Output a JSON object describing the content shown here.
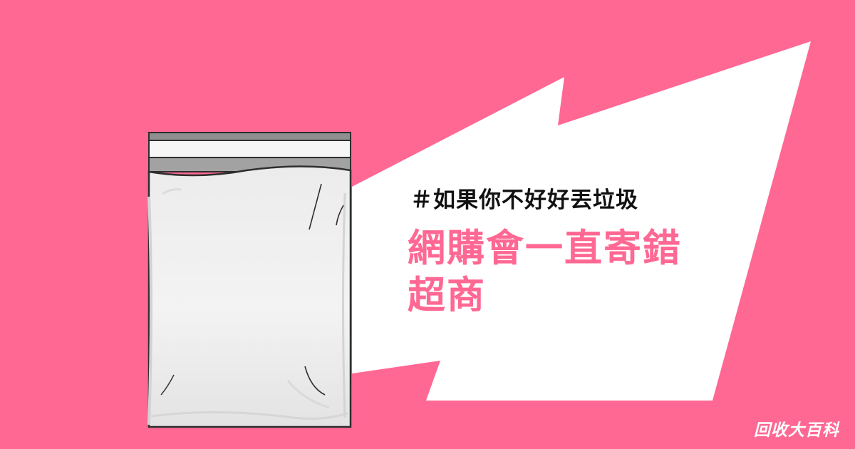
{
  "hashtag": "＃如果你不好好丟垃圾",
  "headline": {
    "line1": "網購會一直寄錯",
    "line2": "超商"
  },
  "brand": "回收大百科",
  "colors": {
    "background": "#ff6893",
    "headline": "#ff6893",
    "hashtag": "#111111",
    "burst": "#ffffff"
  },
  "icons": {
    "illustration": "zip-bag-illustration"
  }
}
